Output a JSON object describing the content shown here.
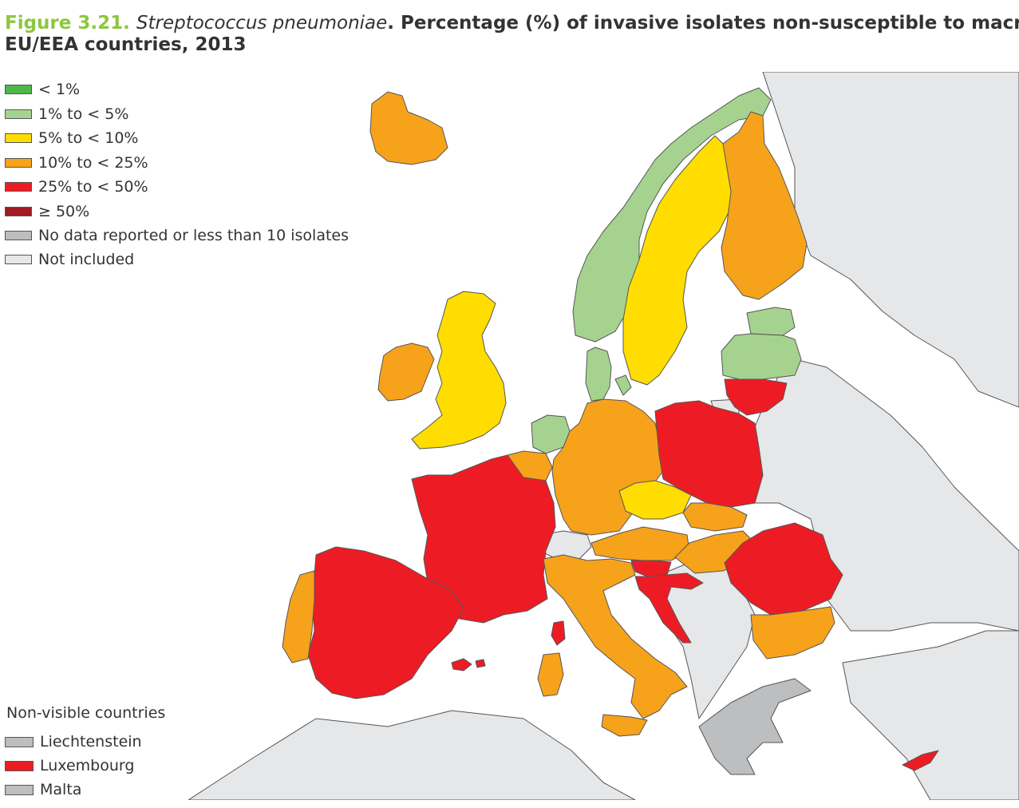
{
  "title": {
    "figure": "Figure 3.21.",
    "species": "Streptococcus pneumoniae",
    "rest": ". Percentage (%) of invasive isolates non-susceptible to macrolides, by",
    "line2": "EU/EEA countries, 2013"
  },
  "legend": [
    {
      "label": "< 1%",
      "color": "#4db848"
    },
    {
      "label": "1% to < 5%",
      "color": "#a5d38f"
    },
    {
      "label": "5% to < 10%",
      "color": "#ffdd00"
    },
    {
      "label": "10% to < 25%",
      "color": "#f7a21b"
    },
    {
      "label": "25% to < 50%",
      "color": "#ed1c24"
    },
    {
      "label": "≥ 50%",
      "color": "#a01c22"
    },
    {
      "label": "No data reported or less than 10 isolates",
      "color": "#bcbec0"
    },
    {
      "label": "Not included",
      "color": "#e6e7e8"
    }
  ],
  "non_visible": {
    "title": "Non-visible countries",
    "items": [
      {
        "label": "Liechtenstein",
        "color": "#bcbec0"
      },
      {
        "label": "Luxembourg",
        "color": "#ed1c24"
      },
      {
        "label": "Malta",
        "color": "#bcbec0"
      }
    ]
  },
  "colors": {
    "sea": "#ffffff",
    "not_included": "#e6e7e8",
    "no_data": "#bcbec0",
    "border": "#555555"
  },
  "countries": [
    {
      "name": "Iceland",
      "category": "10% to < 25%"
    },
    {
      "name": "Norway",
      "category": "1% to < 5%"
    },
    {
      "name": "Sweden",
      "category": "5% to < 10%"
    },
    {
      "name": "Finland",
      "category": "10% to < 25%"
    },
    {
      "name": "Estonia",
      "category": "1% to < 5%"
    },
    {
      "name": "Latvia",
      "category": "1% to < 5%"
    },
    {
      "name": "Lithuania",
      "category": "25% to < 50%"
    },
    {
      "name": "Denmark",
      "category": "1% to < 5%"
    },
    {
      "name": "Ireland",
      "category": "10% to < 25%"
    },
    {
      "name": "United Kingdom",
      "category": "5% to < 10%"
    },
    {
      "name": "Netherlands",
      "category": "1% to < 5%"
    },
    {
      "name": "Belgium",
      "category": "10% to < 25%"
    },
    {
      "name": "Germany",
      "category": "10% to < 25%"
    },
    {
      "name": "Poland",
      "category": "25% to < 50%"
    },
    {
      "name": "Czech Republic",
      "category": "5% to < 10%"
    },
    {
      "name": "Slovakia",
      "category": "10% to < 25%"
    },
    {
      "name": "Austria",
      "category": "10% to < 25%"
    },
    {
      "name": "Hungary",
      "category": "10% to < 25%"
    },
    {
      "name": "Slovenia",
      "category": "25% to < 50%"
    },
    {
      "name": "Croatia",
      "category": "25% to < 50%"
    },
    {
      "name": "Romania",
      "category": "25% to < 50%"
    },
    {
      "name": "Bulgaria",
      "category": "10% to < 25%"
    },
    {
      "name": "France",
      "category": "25% to < 50%"
    },
    {
      "name": "Spain",
      "category": "25% to < 50%"
    },
    {
      "name": "Portugal",
      "category": "10% to < 25%"
    },
    {
      "name": "Italy",
      "category": "10% to < 25%"
    },
    {
      "name": "Cyprus",
      "category": "25% to < 50%"
    },
    {
      "name": "Greece",
      "category": "No data reported or less than 10 isolates"
    }
  ]
}
